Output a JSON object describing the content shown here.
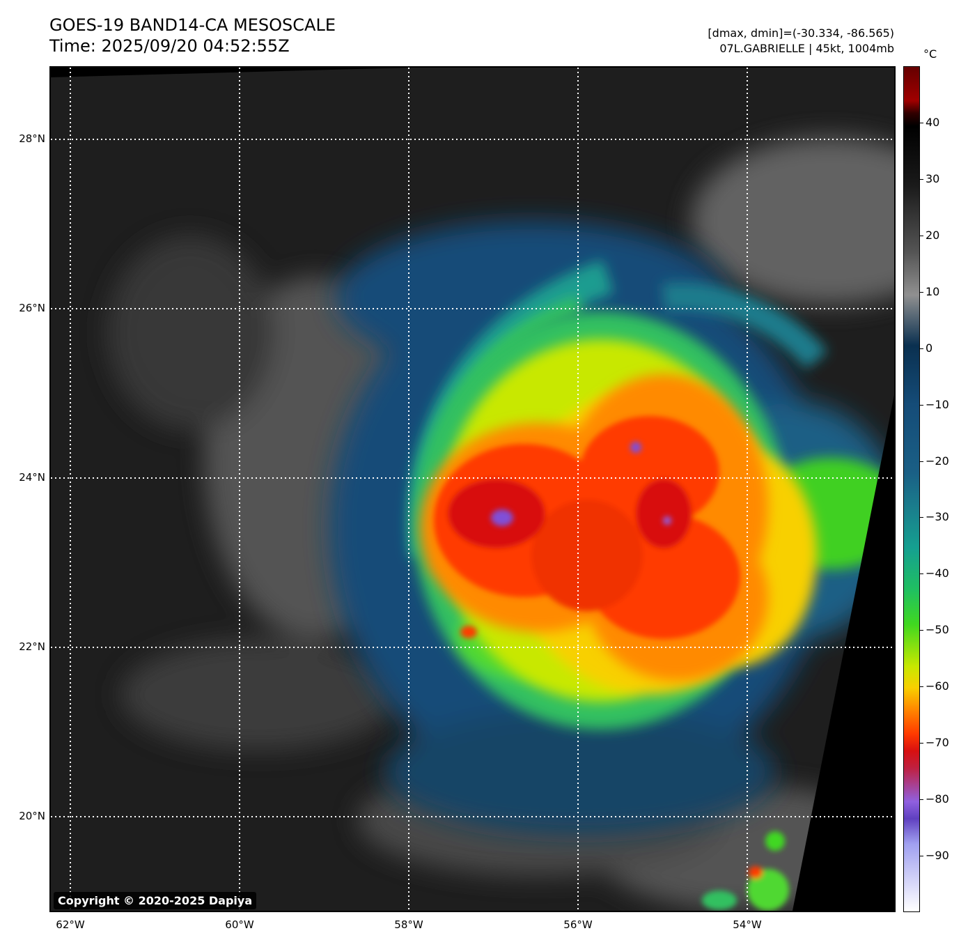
{
  "header": {
    "title_line1": "GOES-19 BAND14-CA MESOSCALE",
    "title_line2": "Time: 2025/09/20 04:52:55Z",
    "info_line1": "[dmax, dmin]=(-30.334, -86.565)",
    "info_line2": "07L.GABRIELLE | 45kt, 1004mb"
  },
  "map": {
    "lat_labels": [
      "28°N",
      "26°N",
      "24°N",
      "22°N",
      "20°N"
    ],
    "lon_labels": [
      "62°W",
      "60°W",
      "58°W",
      "56°W",
      "54°W"
    ],
    "copyright": "Copyright © 2020-2025 Dapiya",
    "storm": "07L.GABRIELLE"
  },
  "colorbar": {
    "unit": "°C",
    "ticks": [
      "40",
      "30",
      "20",
      "10",
      "0",
      "−10",
      "−20",
      "−30",
      "−40",
      "−50",
      "−60",
      "−70",
      "−80",
      "−90"
    ],
    "range": [
      -100,
      50
    ]
  },
  "colors": {
    "background_cloud_free": "#1c1c1c",
    "cold_top": "#ff2a00",
    "cyan_band": "#1a7c8c",
    "green_band": "#40d820",
    "yellow_band": "#f8d000"
  }
}
